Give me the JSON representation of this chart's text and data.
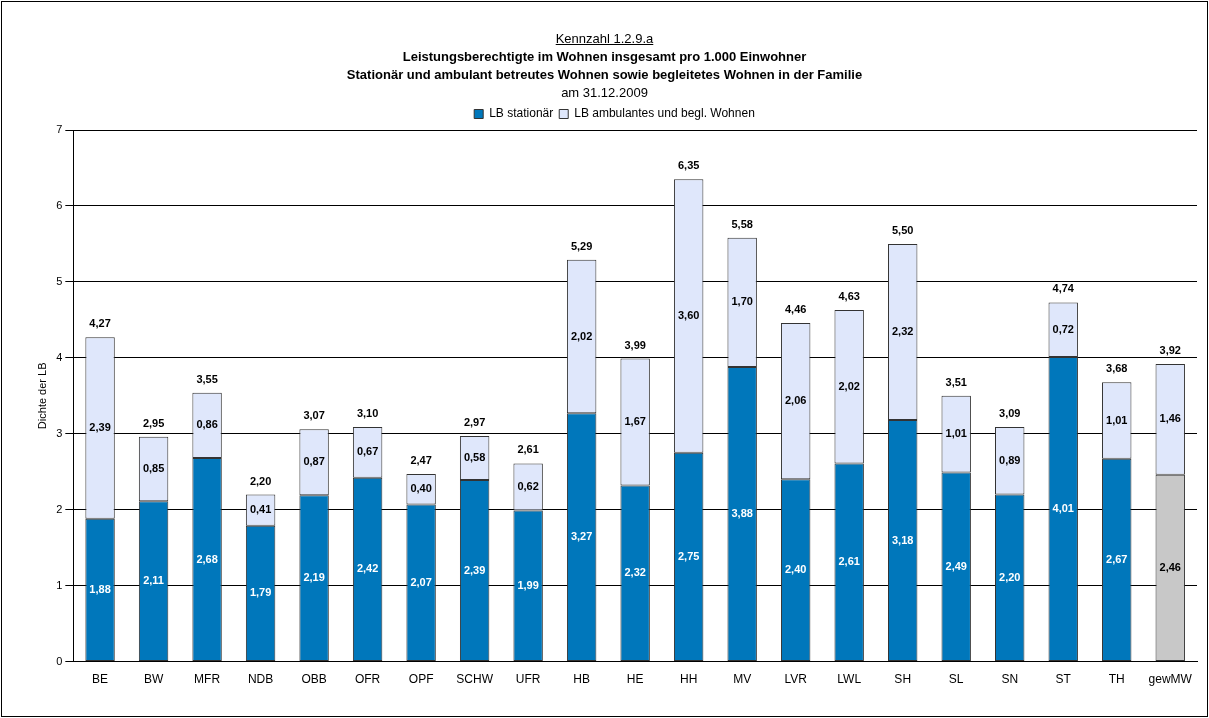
{
  "chart_data": {
    "type": "bar",
    "title": "Leistungsberechtigte im Wohnen insgesamt pro 1.000 Einwohner",
    "subtitle": "Stationär und ambulant betreutes Wohnen sowie begleitetes Wohnen in der Familie",
    "annotations": [
      "Kennzahl 1.2.9.a",
      "am 31.12.2009"
    ],
    "ylabel": "Dichte der LB",
    "categories": [
      "BE",
      "BW",
      "MFR",
      "NDB",
      "OBB",
      "OFR",
      "OPF",
      "SCHW",
      "UFR",
      "HB",
      "HE",
      "HH",
      "MV",
      "LVR",
      "LWL",
      "SH",
      "SL",
      "SN",
      "ST",
      "TH",
      "gewMW"
    ],
    "stacked": true,
    "ylim": [
      0,
      7
    ],
    "yticks": [
      0,
      1,
      2,
      3,
      4,
      5,
      6,
      7
    ],
    "grid": "y",
    "legend": "top",
    "series": [
      {
        "name": "LB stationär",
        "color": "#0077bb",
        "colors": [
          "#0077bb",
          "#0077bb",
          "#0077bb",
          "#0077bb",
          "#0077bb",
          "#0077bb",
          "#0077bb",
          "#0077bb",
          "#0077bb",
          "#0077bb",
          "#0077bb",
          "#0077bb",
          "#0077bb",
          "#0077bb",
          "#0077bb",
          "#0077bb",
          "#0077bb",
          "#0077bb",
          "#0077bb",
          "#0077bb",
          "#c8c8c8"
        ],
        "values": [
          1.88,
          2.11,
          2.68,
          1.79,
          2.19,
          2.42,
          2.07,
          2.39,
          1.99,
          3.27,
          2.32,
          2.75,
          3.88,
          2.4,
          2.61,
          3.18,
          2.49,
          2.2,
          4.01,
          2.67,
          2.46
        ],
        "value_labels": [
          "1,88",
          "2,11",
          "2,68",
          "1,79",
          "2,19",
          "2,42",
          "2,07",
          "2,39",
          "1,99",
          "3,27",
          "2,32",
          "2,75",
          "3,88",
          "2,40",
          "2,61",
          "3,18",
          "2,49",
          "2,20",
          "4,01",
          "2,67",
          "2,46"
        ]
      },
      {
        "name": "LB ambulantes und begl. Wohnen",
        "color": "#dfe7fb",
        "values": [
          2.39,
          0.85,
          0.86,
          0.41,
          0.87,
          0.67,
          0.4,
          0.58,
          0.62,
          2.02,
          1.67,
          3.6,
          1.7,
          2.06,
          2.02,
          2.32,
          1.01,
          0.89,
          0.72,
          1.01,
          1.46
        ],
        "value_labels": [
          "2,39",
          "0,85",
          "0,86",
          "0,41",
          "0,87",
          "0,67",
          "0,40",
          "0,58",
          "0,62",
          "2,02",
          "1,67",
          "3,60",
          "1,70",
          "2,06",
          "2,02",
          "2,32",
          "1,01",
          "0,89",
          "0,72",
          "1,01",
          "1,46"
        ]
      }
    ],
    "totals": [
      "4,27",
      "2,95",
      "3,55",
      "2,20",
      "3,07",
      "3,10",
      "2,47",
      "2,97",
      "2,61",
      "5,29",
      "3,99",
      "6,35",
      "5,58",
      "4,46",
      "4,63",
      "5,50",
      "3,51",
      "3,09",
      "4,74",
      "3,68",
      "3,92"
    ]
  }
}
